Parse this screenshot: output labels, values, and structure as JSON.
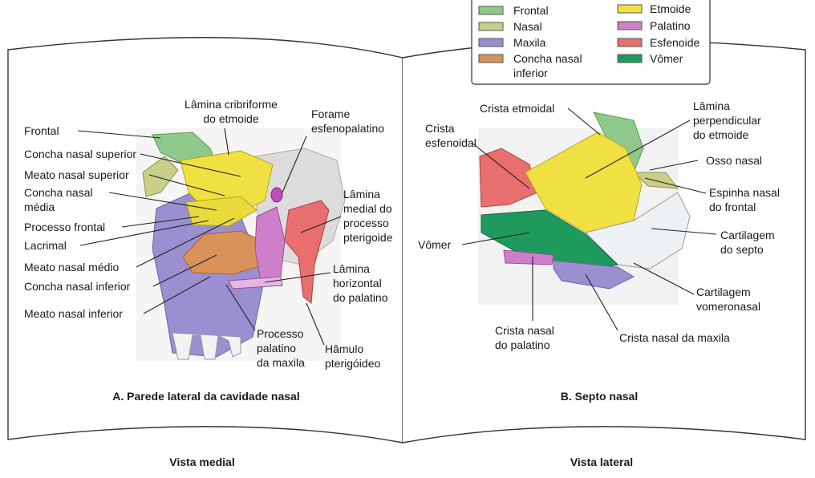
{
  "legend": {
    "items": [
      {
        "label": "Frontal",
        "color": "#8fc98a"
      },
      {
        "label": "Nasal",
        "color": "#c8cf86"
      },
      {
        "label": "Maxila",
        "color": "#9b8fd1"
      },
      {
        "label_line1": "Concha nasal",
        "label_line2": "inferior",
        "color": "#d9935a"
      },
      {
        "label": "Etmoide",
        "color": "#f1e042"
      },
      {
        "label": "Palatino",
        "color": "#cf7fc9"
      },
      {
        "label": "Esfenoide",
        "color": "#e96e6e"
      },
      {
        "label": "Vômer",
        "color": "#1f9a5e"
      }
    ]
  },
  "panel_a": {
    "caption": "A. Parede lateral da cavidade nasal",
    "view": "Vista medial",
    "labels": {
      "frontal": "Frontal",
      "concha_superior": "Concha nasal superior",
      "meato_superior": "Meato nasal superior",
      "concha_media_1": "Concha nasal",
      "concha_media_2": "média",
      "processo_frontal": "Processo frontal",
      "lacrimal": "Lacrimal",
      "meato_medio": "Meato nasal médio",
      "concha_inferior": "Concha nasal inferior",
      "meato_inferior": "Meato nasal inferior",
      "lamina_cribriforme_1": "Lâmina cribriforme",
      "lamina_cribriforme_2": "do etmoide",
      "forame_1": "Forame",
      "forame_2": "esfenopalatino",
      "lamina_medial_1": "Lâmina",
      "lamina_medial_2": "medial do",
      "lamina_medial_3": "processo",
      "lamina_medial_4": "pterigoide",
      "lamina_horizontal_1": "Lâmina",
      "lamina_horizontal_2": "horizontal",
      "lamina_horizontal_3": "do palatino",
      "processo_palatino_1": "Processo",
      "processo_palatino_2": "palatino",
      "processo_palatino_3": "da maxila",
      "hamulo_1": "Hâmulo",
      "hamulo_2": "pterigóideo"
    }
  },
  "panel_b": {
    "caption": "B. Septo nasal",
    "view": "Vista lateral",
    "labels": {
      "crista_etmoidal": "Crista etmoidal",
      "crista_esfenoidal_1": "Crista",
      "crista_esfenoidal_2": "esfenoidal",
      "vomer": "Vômer",
      "lamina_perpendicular_1": "Lâmina",
      "lamina_perpendicular_2": "perpendicular",
      "lamina_perpendicular_3": "do etmoide",
      "osso_nasal": "Osso nasal",
      "espinha_1": "Espinha nasal",
      "espinha_2": "do frontal",
      "cartilagem_septo_1": "Cartilagem",
      "cartilagem_septo_2": "do septo",
      "cartilagem_vomero_1": "Cartilagem",
      "cartilagem_vomero_2": "vomeronasal",
      "crista_palatino_1": "Crista nasal",
      "crista_palatino_2": "do palatino",
      "crista_maxila": "Crista nasal da maxila"
    }
  }
}
